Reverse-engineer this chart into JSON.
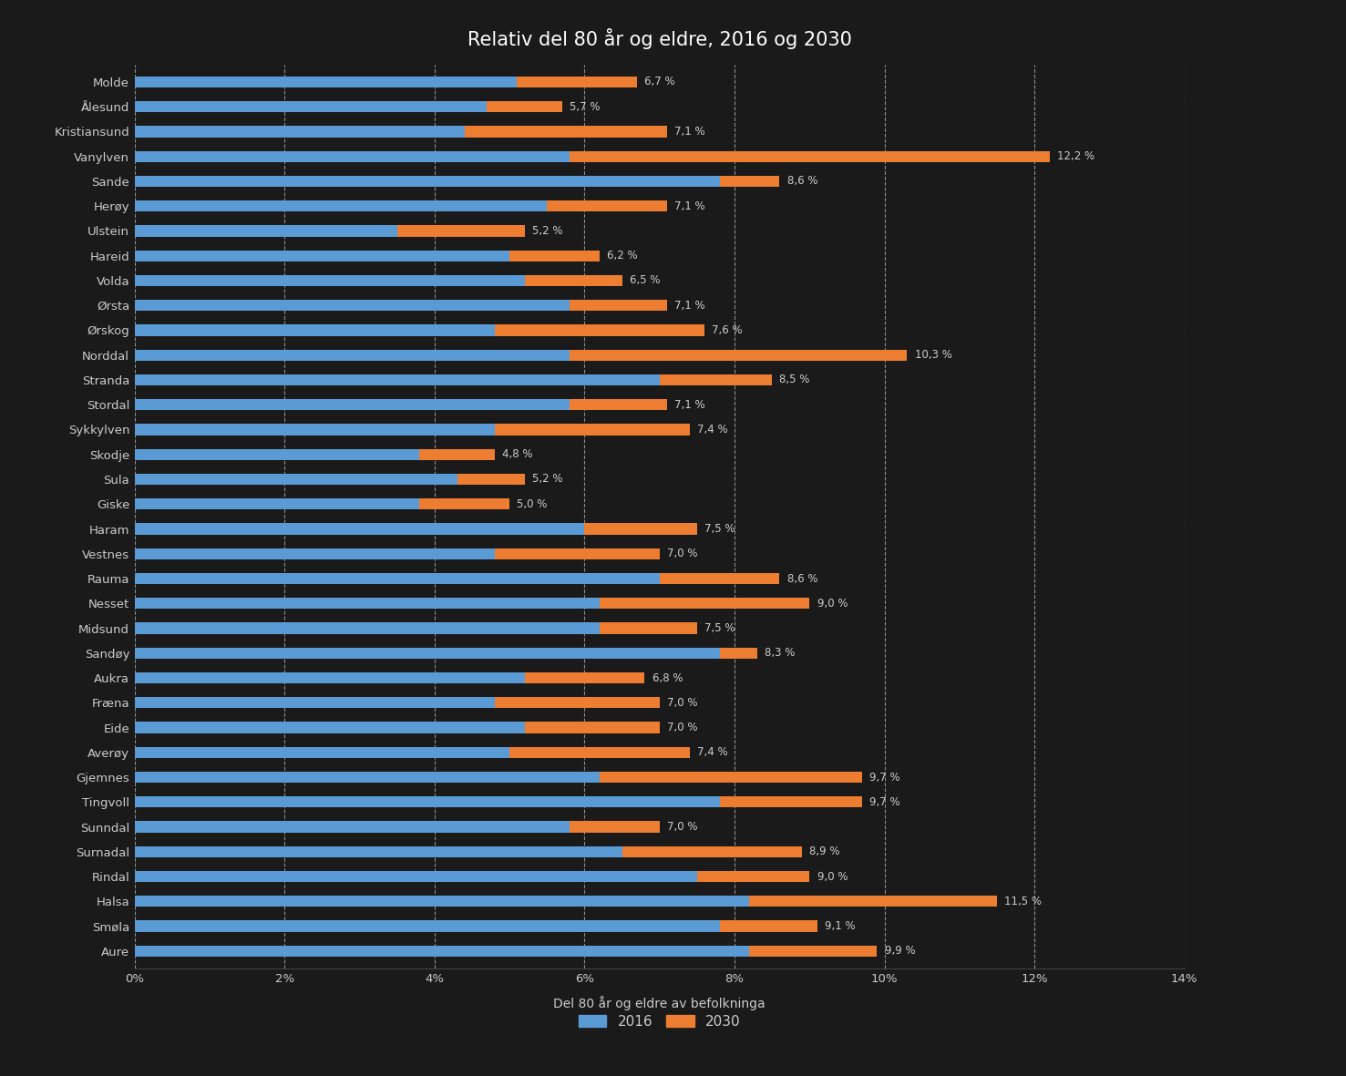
{
  "title": "Relativ del 80 år og eldre, 2016 og 2030",
  "xlabel": "Del 80 år og eldre av befolkninga",
  "categories": [
    "Molde",
    "Ålesund",
    "Kristiansund",
    "Vanylven",
    "Sande",
    "Herøy",
    "Ulstein",
    "Hareid",
    "Volda",
    "Ørsta",
    "Ørskog",
    "Norddal",
    "Stranda",
    "Stordal",
    "Sykkylven",
    "Skodje",
    "Sula",
    "Giske",
    "Haram",
    "Vestnes",
    "Rauma",
    "Nesset",
    "Midsund",
    "Sandøy",
    "Aukra",
    "Fræna",
    "Eide",
    "Averøy",
    "Gjemnes",
    "Tingvoll",
    "Sunndal",
    "Surnadal",
    "Rindal",
    "Halsa",
    "Smøla",
    "Aure"
  ],
  "values_2016": [
    5.1,
    4.7,
    4.4,
    5.8,
    7.8,
    5.5,
    3.5,
    5.0,
    5.2,
    5.8,
    4.8,
    5.8,
    7.0,
    5.8,
    4.8,
    3.8,
    4.3,
    3.8,
    6.0,
    4.8,
    7.0,
    6.2,
    6.2,
    7.8,
    5.2,
    4.8,
    5.2,
    5.0,
    6.2,
    7.8,
    5.8,
    6.5,
    7.5,
    8.2,
    7.8,
    8.2
  ],
  "values_2030": [
    6.7,
    5.7,
    7.1,
    12.2,
    8.6,
    7.1,
    5.2,
    6.2,
    6.5,
    7.1,
    7.6,
    10.3,
    8.5,
    7.1,
    7.4,
    4.8,
    5.2,
    5.0,
    7.5,
    7.0,
    8.6,
    9.0,
    7.5,
    8.3,
    6.8,
    7.0,
    7.0,
    7.4,
    9.7,
    9.7,
    7.0,
    8.9,
    9.0,
    11.5,
    9.1,
    9.9
  ],
  "labels_2030": [
    "6,7 %",
    "5,7 %",
    "7,1 %",
    "12,2 %",
    "8,6 %",
    "7,1 %",
    "5,2 %",
    "6,2 %",
    "6,5 %",
    "7,1 %",
    "7,6 %",
    "10,3 %",
    "8,5 %",
    "7,1 %",
    "7,4 %",
    "4,8 %",
    "5,2 %",
    "5,0 %",
    "7,5 %",
    "7,0 %",
    "8,6 %",
    "9,0 %",
    "7,5 %",
    "8,3 %",
    "6,8 %",
    "7,0 %",
    "7,0 %",
    "7,4 %",
    "9,7 %",
    "9,7 %",
    "7,0 %",
    "8,9 %",
    "9,0 %",
    "11,5 %",
    "9,1 %",
    "9,9 %"
  ],
  "color_2016": "#5B9BD5",
  "color_2030": "#ED7D31",
  "background_color": "#1A1A1A",
  "text_color": "#CCCCCC",
  "grid_color": "#FFFFFF",
  "xlim": [
    0,
    14
  ],
  "xticks": [
    0,
    2,
    4,
    6,
    8,
    10,
    12,
    14
  ],
  "xticklabels": [
    "0%",
    "2%",
    "4%",
    "6%",
    "8%",
    "10%",
    "12%",
    "14%"
  ],
  "legend_2016": "2016",
  "legend_2030": "2030",
  "bar_height": 0.45
}
